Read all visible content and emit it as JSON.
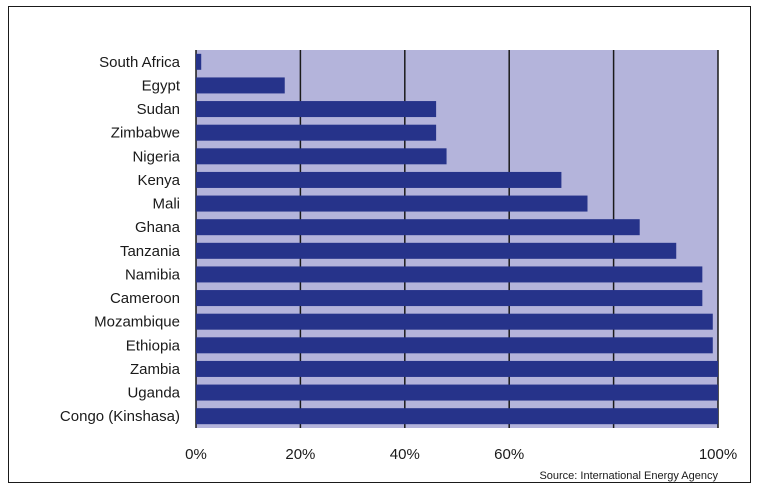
{
  "chart_data": {
    "type": "bar",
    "orientation": "horizontal",
    "categories": [
      "South Africa",
      "Egypt",
      "Sudan",
      "Zimbabwe",
      "Nigeria",
      "Kenya",
      "Mali",
      "Ghana",
      "Tanzania",
      "Namibia",
      "Cameroon",
      "Mozambique",
      "Ethiopia",
      "Zambia",
      "Uganda",
      "Congo (Kinshasa)"
    ],
    "values": [
      1,
      17,
      46,
      46,
      48,
      70,
      75,
      85,
      92,
      97,
      97,
      99,
      99,
      100,
      100,
      100
    ],
    "xlim": [
      0,
      100
    ],
    "xticks": [
      0,
      20,
      40,
      60,
      80,
      100
    ],
    "xtick_labels": [
      "0%",
      "20%",
      "40%",
      "60%",
      "",
      "100%"
    ],
    "grid": true,
    "source": "Source: International Energy Agency",
    "colors": {
      "bar": "#26338a",
      "plot_background": "#b4b4db",
      "gridline": "#1a1a1a"
    }
  }
}
